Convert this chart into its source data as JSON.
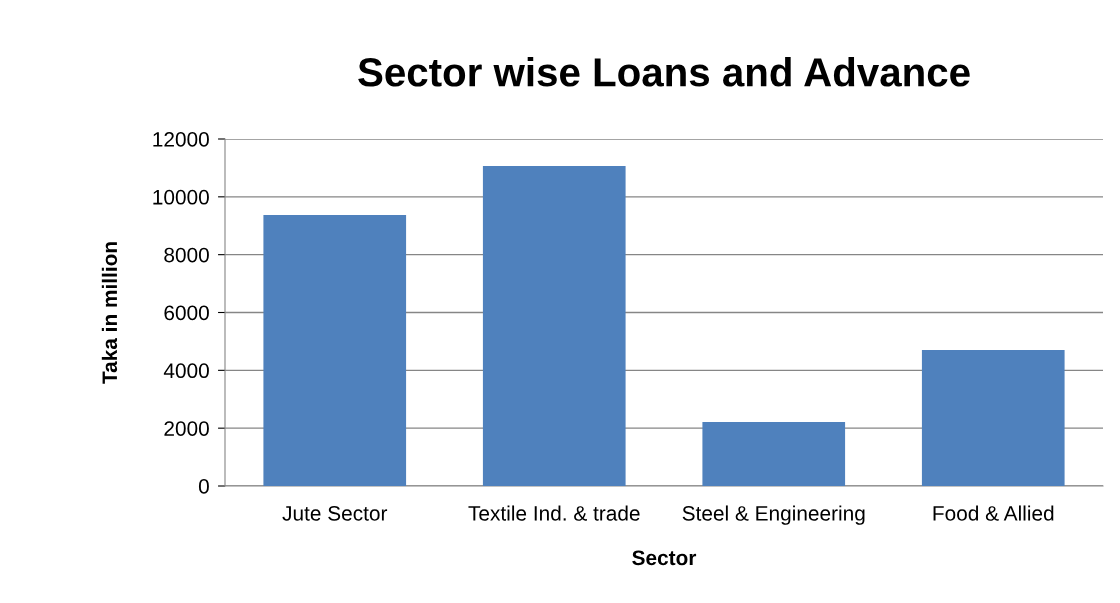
{
  "chart_data": {
    "type": "bar",
    "title": "Sector wise Loans and Advance",
    "xlabel": "Sector",
    "ylabel": "Taka in million",
    "categories": [
      "Jute Sector",
      "Textile Ind. & trade",
      "Steel & Engineering",
      "Food & Allied"
    ],
    "values": [
      9370,
      11070,
      2210,
      4700
    ],
    "color": "#4f81bd",
    "ylim": [
      0,
      12000
    ],
    "yticks": [
      0,
      2000,
      4000,
      6000,
      8000,
      10000,
      12000
    ],
    "grid": "y",
    "legend": false
  }
}
